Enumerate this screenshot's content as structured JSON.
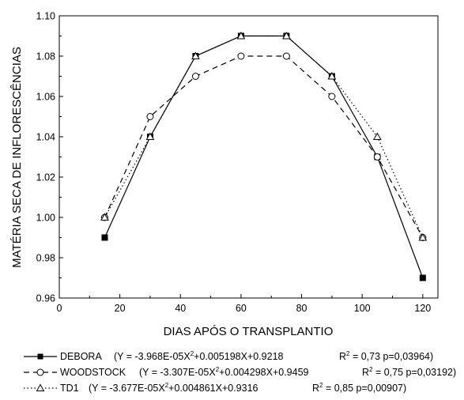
{
  "chart_data": {
    "type": "line",
    "xlabel": "DIAS APÓS O TRANSPLANTIO",
    "ylabel": "MATÉRIA SECA DE INFLORESCÊNCIAS",
    "xlim": [
      0,
      125
    ],
    "ylim": [
      0.96,
      1.1
    ],
    "xticks": [
      0,
      20,
      40,
      60,
      80,
      100,
      120
    ],
    "yticks": [
      0.96,
      0.98,
      1.0,
      1.02,
      1.04,
      1.06,
      1.08,
      1.1
    ],
    "xtick_labels": [
      "0",
      "20",
      "40",
      "60",
      "80",
      "100",
      "120"
    ],
    "ytick_labels": [
      "0.96",
      "0.98",
      "1.00",
      "1.02",
      "1.04",
      "1.06",
      "1.08",
      "1.10"
    ],
    "x": [
      15,
      30,
      45,
      60,
      75,
      90,
      105,
      120
    ],
    "grid": false,
    "legend_position": "bottom",
    "series": [
      {
        "name": "DEBORA",
        "values": [
          0.99,
          1.04,
          1.08,
          1.09,
          1.09,
          1.07,
          1.03,
          0.97
        ],
        "marker": "filled-square",
        "line_style": "solid",
        "equation_prefix": "(Y = -3.968E-05X",
        "equation_suffix": "+0.005198X+0.9218",
        "r2_prefix": "R",
        "r2_suffix": " = 0,73  p=0,03964)",
        "superscript": "2"
      },
      {
        "name": "WOODSTOCK",
        "values": [
          1.0,
          1.05,
          1.07,
          1.08,
          1.08,
          1.06,
          1.03,
          0.99
        ],
        "marker": "open-circle",
        "line_style": "dashed",
        "equation_prefix": "(Y = -3.307E-05X",
        "equation_suffix": "+0.004298X+0.9459",
        "r2_prefix": "R",
        "r2_suffix": " = 0,75  p=0,03192)",
        "superscript": "2"
      },
      {
        "name": "TD1",
        "values": [
          1.0,
          1.04,
          1.08,
          1.09,
          1.09,
          1.07,
          1.04,
          0.99
        ],
        "marker": "open-triangle",
        "line_style": "dotted",
        "equation_prefix": "(Y = -3.677E-05X",
        "equation_suffix": "+0.004861X+0.9316",
        "r2_prefix": "R",
        "r2_suffix": " = 0,85  p=0,00907)",
        "superscript": "2"
      }
    ]
  }
}
